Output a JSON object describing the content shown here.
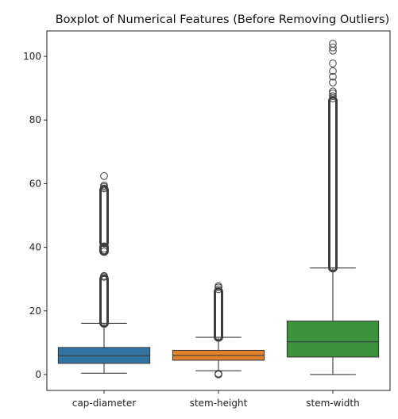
{
  "chart_data": {
    "type": "boxplot",
    "title": "Boxplot of Numerical Features (Before Removing Outliers)",
    "xlabel": "",
    "ylabel": "",
    "ylim": [
      -5,
      108
    ],
    "yticks": [
      0,
      20,
      40,
      60,
      80,
      100
    ],
    "grid": false,
    "categories": [
      "cap-diameter",
      "stem-height",
      "stem-width"
    ],
    "series": [
      {
        "category": "cap-diameter",
        "color": "#3274a1",
        "whisker_low": 0.4,
        "q1": 3.5,
        "median": 5.9,
        "q3": 8.5,
        "whisker_high": 16.1,
        "outlier_bands": [
          [
            16.2,
            30.0
          ],
          [
            38.8,
            40.0
          ],
          [
            41.5,
            58.0
          ]
        ],
        "outliers": [
          30.7,
          31.0,
          38.7,
          39.5,
          58.5,
          59.0,
          59.4,
          62.4
        ]
      },
      {
        "category": "stem-height",
        "color": "#e1812c",
        "whisker_low": 1.2,
        "q1": 4.5,
        "median": 6.0,
        "q3": 7.6,
        "whisker_high": 11.7,
        "outlier_bands": [
          [
            11.8,
            26.0
          ]
        ],
        "outliers": [
          0.0,
          0.1,
          0.3,
          26.8,
          27.4,
          27.8
        ]
      },
      {
        "category": "stem-width",
        "color": "#3a923a",
        "whisker_low": 0.0,
        "q1": 5.5,
        "median": 10.3,
        "q3": 16.8,
        "whisker_high": 33.5,
        "outlier_bands": [
          [
            33.6,
            86.0
          ]
        ],
        "outliers": [
          86.8,
          87.5,
          88.4,
          89.0,
          91.8,
          93.6,
          95.4,
          97.8,
          101.8,
          102.8,
          104.0
        ]
      }
    ]
  }
}
